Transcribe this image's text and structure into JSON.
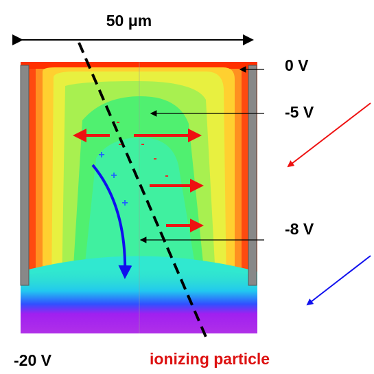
{
  "scale_label": "50 μm",
  "voltages": [
    "0 V",
    "-5 V",
    "-8 V",
    "-20 V"
  ],
  "particle_label": "ionizing particle",
  "charges": [
    "-",
    "-",
    "-",
    "-",
    "-",
    "+",
    "+",
    "+"
  ]
}
